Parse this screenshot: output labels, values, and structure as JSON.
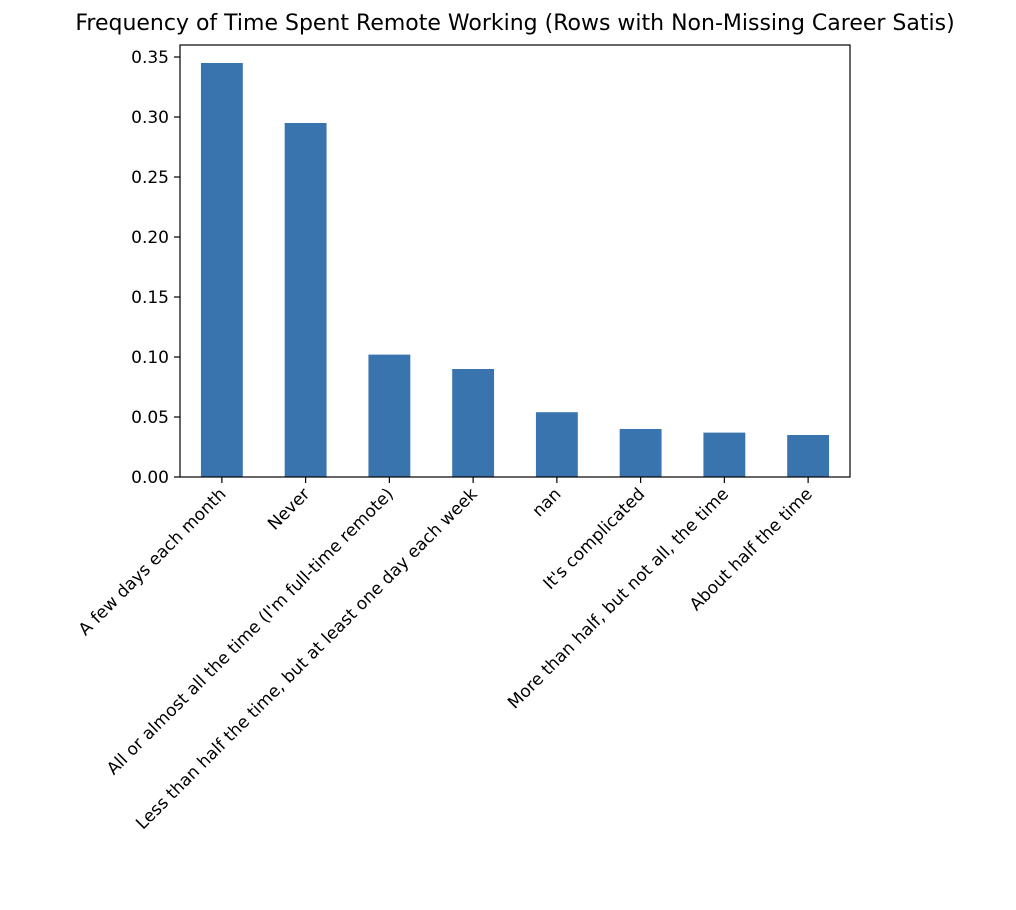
{
  "chart_data": {
    "type": "bar",
    "title": "Frequency of Time Spent Remote Working (Rows with Non-Missing Career Satis)",
    "xlabel": "",
    "ylabel": "",
    "categories": [
      "A few days each month",
      "Never",
      "All or almost all the time (I'm full-time remote)",
      "Less than half the time, but at least one day each week",
      "nan",
      "It's complicated",
      "More than half, but not all, the time",
      "About half the time"
    ],
    "values": [
      0.345,
      0.295,
      0.102,
      0.09,
      0.054,
      0.04,
      0.037,
      0.035
    ],
    "ylim": [
      0,
      0.36
    ],
    "yticks": [
      0.0,
      0.05,
      0.1,
      0.15,
      0.2,
      0.25,
      0.3,
      0.35
    ],
    "ytick_labels": [
      "0.00",
      "0.05",
      "0.10",
      "0.15",
      "0.20",
      "0.25",
      "0.30",
      "0.35"
    ],
    "bar_color": "#3a74af",
    "grid": false,
    "legend": "none"
  }
}
